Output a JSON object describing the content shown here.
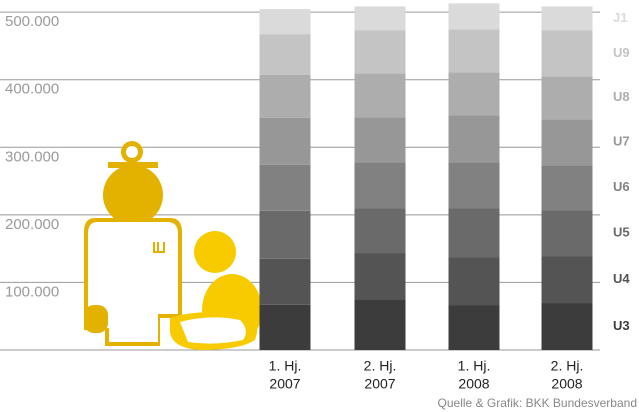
{
  "chart_data": {
    "type": "stacked_bar",
    "source": "Quelle & Grafik: BKK Bundesverband",
    "categories": [
      [
        "1. Hj.",
        "2007"
      ],
      [
        "2. Hj.",
        "2007"
      ],
      [
        "1. Hj.",
        "2008"
      ],
      [
        "2. Hj.",
        "2008"
      ]
    ],
    "series": [
      {
        "name": "U3",
        "color": "#3c3c3c",
        "values": [
          67000,
          74000,
          66500,
          69500
        ]
      },
      {
        "name": "U4",
        "color": "#545454",
        "values": [
          68000,
          69500,
          71000,
          69500
        ]
      },
      {
        "name": "U5",
        "color": "#6a6a6a",
        "values": [
          71000,
          66500,
          72500,
          68000
        ]
      },
      {
        "name": "U6",
        "color": "#818181",
        "values": [
          68000,
          68000,
          68000,
          66500
        ]
      },
      {
        "name": "U7",
        "color": "#979797",
        "values": [
          69500,
          66500,
          69500,
          68000
        ]
      },
      {
        "name": "U8",
        "color": "#adadad",
        "values": [
          63500,
          65000,
          63500,
          63500
        ]
      },
      {
        "name": "U9",
        "color": "#c4c4c4",
        "values": [
          60500,
          63500,
          63500,
          68000
        ]
      },
      {
        "name": "J1",
        "color": "#dadada",
        "values": [
          37000,
          35500,
          38500,
          35500
        ]
      }
    ],
    "ylim": [
      0,
      518000
    ],
    "yticks": [
      {
        "value": 100000,
        "label": "100.000"
      },
      {
        "value": 200000,
        "label": "200.000"
      },
      {
        "value": 300000,
        "label": "300.000"
      },
      {
        "value": 400000,
        "label": "400.000"
      },
      {
        "value": 500000,
        "label": "500.000"
      }
    ],
    "grid": true
  }
}
